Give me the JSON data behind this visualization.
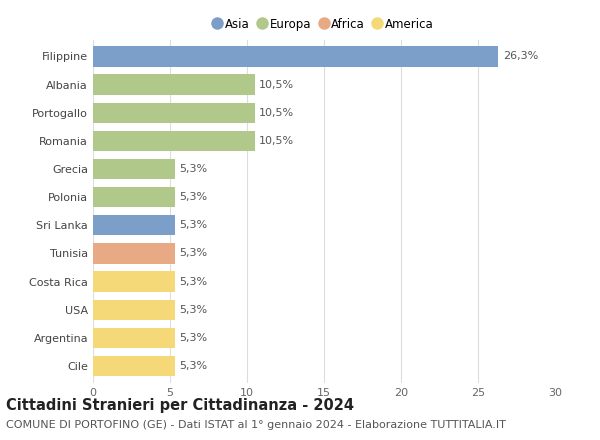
{
  "countries": [
    "Filippine",
    "Albania",
    "Portogallo",
    "Romania",
    "Grecia",
    "Polonia",
    "Sri Lanka",
    "Tunisia",
    "Costa Rica",
    "USA",
    "Argentina",
    "Cile"
  ],
  "values": [
    26.3,
    10.5,
    10.5,
    10.5,
    5.3,
    5.3,
    5.3,
    5.3,
    5.3,
    5.3,
    5.3,
    5.3
  ],
  "labels": [
    "26,3%",
    "10,5%",
    "10,5%",
    "10,5%",
    "5,3%",
    "5,3%",
    "5,3%",
    "5,3%",
    "5,3%",
    "5,3%",
    "5,3%",
    "5,3%"
  ],
  "continents": [
    "Asia",
    "Europa",
    "Europa",
    "Europa",
    "Europa",
    "Europa",
    "Asia",
    "Africa",
    "America",
    "America",
    "America",
    "America"
  ],
  "colors": {
    "Asia": "#7b9fc8",
    "Europa": "#b0c98a",
    "Africa": "#e8aa85",
    "America": "#f5d878"
  },
  "legend_order": [
    "Asia",
    "Europa",
    "Africa",
    "America"
  ],
  "xlim": [
    0,
    30
  ],
  "xticks": [
    0,
    5,
    10,
    15,
    20,
    25,
    30
  ],
  "title": "Cittadini Stranieri per Cittadinanza - 2024",
  "subtitle": "COMUNE DI PORTOFINO (GE) - Dati ISTAT al 1° gennaio 2024 - Elaborazione TUTTITALIA.IT",
  "background_color": "#ffffff",
  "grid_color": "#dddddd",
  "bar_height": 0.72,
  "title_fontsize": 10.5,
  "subtitle_fontsize": 8,
  "label_fontsize": 8,
  "tick_fontsize": 8,
  "legend_fontsize": 8.5
}
